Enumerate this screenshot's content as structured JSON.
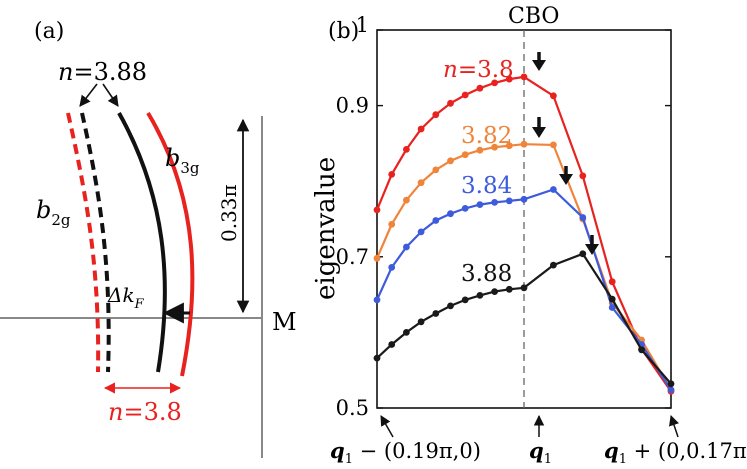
{
  "panel_a": {
    "label": "(a)",
    "n_black": "n=3.88",
    "n_red": "n=3.8",
    "band_b2g": {
      "base": "b",
      "sub": "2g"
    },
    "band_b3g": {
      "base": "b",
      "sub": "3g"
    },
    "delta_kf": {
      "base": "Δk",
      "sub": "F"
    },
    "height_label": "0.33π",
    "m_label": "M"
  },
  "chart_data": {
    "type": "line",
    "panel_label": "(b)",
    "top_label": "CBO",
    "ylabel": "eigenvalue",
    "ylim": [
      0.5,
      1.0
    ],
    "yticks": [
      0.5,
      0.7,
      0.9,
      1
    ],
    "ytick_labels": [
      "0.5",
      "0.7",
      "0.9",
      "1"
    ],
    "xlim": [
      0,
      1
    ],
    "x_cbo": 0.5,
    "xlabels": {
      "left": {
        "q": "q",
        "sub": "1",
        "rest": " − (0.19π,0)"
      },
      "mid": {
        "q": "q",
        "sub": "1"
      },
      "right": {
        "q": "q",
        "sub": "1",
        "rest": " + (0,0.17π)"
      }
    },
    "series": [
      {
        "name": "n=3.8",
        "label": "n=3.8",
        "color": "#e8221e",
        "x": [
          0,
          0.05,
          0.1,
          0.15,
          0.2,
          0.25,
          0.3,
          0.35,
          0.4,
          0.45,
          0.5,
          0.6,
          0.7,
          0.8,
          0.9,
          1.0
        ],
        "y": [
          0.762,
          0.809,
          0.842,
          0.869,
          0.888,
          0.903,
          0.914,
          0.923,
          0.93,
          0.935,
          0.938,
          0.913,
          0.807,
          0.667,
          0.578,
          0.522
        ]
      },
      {
        "name": "n=3.82",
        "label": "3.82",
        "color": "#f0843a",
        "x": [
          0,
          0.05,
          0.1,
          0.15,
          0.2,
          0.25,
          0.3,
          0.35,
          0.4,
          0.45,
          0.5,
          0.6,
          0.7,
          0.8,
          0.9,
          1.0
        ],
        "y": [
          0.698,
          0.743,
          0.775,
          0.798,
          0.815,
          0.827,
          0.835,
          0.841,
          0.845,
          0.847,
          0.849,
          0.848,
          0.75,
          0.639,
          0.59,
          0.524
        ]
      },
      {
        "name": "n=3.84",
        "label": "3.84",
        "color": "#3e5bdc",
        "x": [
          0,
          0.05,
          0.1,
          0.15,
          0.2,
          0.25,
          0.3,
          0.35,
          0.4,
          0.45,
          0.5,
          0.6,
          0.7,
          0.8,
          0.9,
          1.0
        ],
        "y": [
          0.643,
          0.686,
          0.713,
          0.733,
          0.748,
          0.757,
          0.764,
          0.769,
          0.772,
          0.774,
          0.776,
          0.789,
          0.752,
          0.633,
          0.584,
          0.524
        ]
      },
      {
        "name": "n=3.88",
        "label": "3.88",
        "color": "#1a1a1a",
        "x": [
          0,
          0.05,
          0.1,
          0.15,
          0.2,
          0.25,
          0.3,
          0.35,
          0.4,
          0.45,
          0.5,
          0.6,
          0.7,
          0.8,
          0.9,
          1.0
        ],
        "y": [
          0.566,
          0.584,
          0.6,
          0.614,
          0.625,
          0.635,
          0.643,
          0.649,
          0.654,
          0.657,
          0.659,
          0.689,
          0.704,
          0.644,
          0.577,
          0.532
        ]
      }
    ]
  }
}
